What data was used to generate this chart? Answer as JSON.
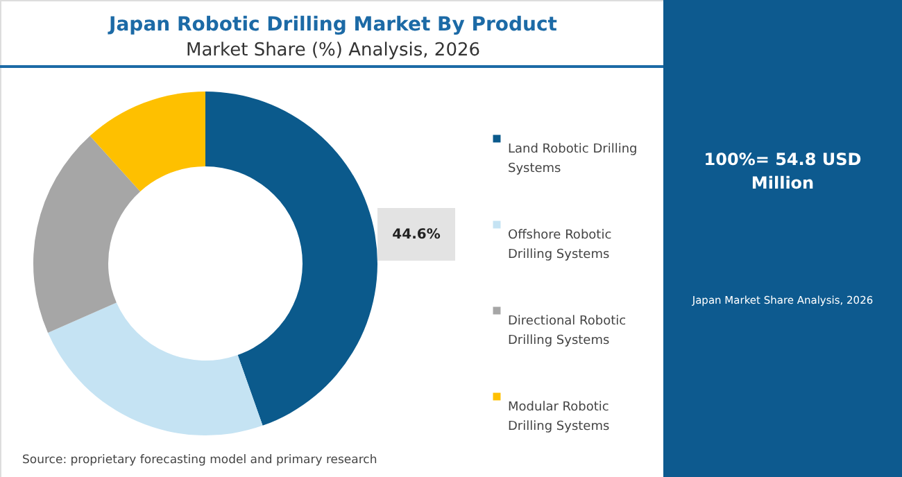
{
  "chart_data": {
    "type": "donut",
    "title": "Japan Robotic Drilling Market By Product",
    "subtitle": "Market Share (%) Analysis, 2026",
    "categories": [
      "Land Robotic Drilling Systems",
      "Offshore Robotic Drilling Systems",
      "Directional Robotic Drilling Systems",
      "Modular Robotic Drilling Systems"
    ],
    "values": [
      44.6,
      23.8,
      19.9,
      11.7
    ],
    "colors": [
      "#0b5a8c",
      "#c5e3f3",
      "#a6a6a6",
      "#fec000"
    ],
    "value_labels": [
      "44.6%",
      null,
      null,
      null
    ],
    "legend": "right",
    "annotations": [
      "Source: proprietary forecasting model and primary research",
      "100%= 54.8 USD Million",
      "Japan Market Share Analysis, 2026"
    ]
  }
}
